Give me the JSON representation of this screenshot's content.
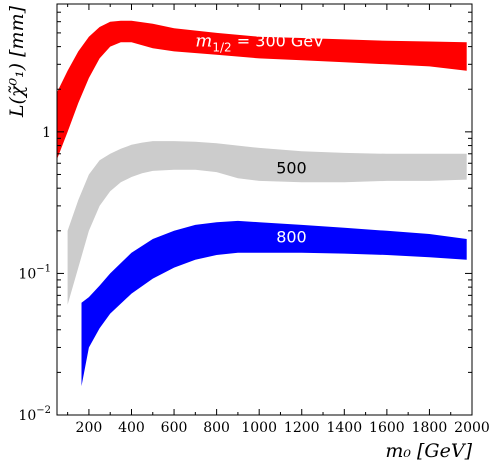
{
  "chart_data": {
    "type": "area",
    "xlabel": "m₀ [GeV]",
    "ylabel": "L(χ̃⁰₁) [mm]",
    "xlim": [
      50,
      2000
    ],
    "ylim": [
      0.01,
      8
    ],
    "y_scale": "log",
    "grid": false,
    "x_ticks": [
      200,
      400,
      600,
      800,
      1000,
      1200,
      1400,
      1600,
      1800,
      2000
    ],
    "y_ticks": [
      {
        "value": 0.01,
        "base": "10",
        "exp": "−2"
      },
      {
        "value": 0.1,
        "base": "10",
        "exp": "−1"
      },
      {
        "value": 1,
        "base": "1",
        "exp": ""
      }
    ],
    "series": [
      {
        "name": "m1/2 = 300 GeV",
        "label_main": "m",
        "label_sub": "1/2",
        "label_rest": " = 300 GeV",
        "label_at": [
          700,
          4.0
        ],
        "label_color": "#ffffff",
        "color": "#ff0000",
        "x": [
          50,
          100,
          150,
          200,
          250,
          300,
          350,
          400,
          500,
          600,
          800,
          1000,
          1200,
          1400,
          1600,
          1800,
          1975
        ],
        "upper": [
          1.9,
          2.7,
          3.7,
          4.7,
          5.5,
          6.0,
          6.1,
          6.1,
          5.8,
          5.4,
          5.0,
          4.7,
          4.6,
          4.5,
          4.4,
          4.35,
          4.3
        ],
        "lower": [
          0.64,
          1.0,
          1.6,
          2.4,
          3.3,
          4.0,
          4.3,
          4.3,
          3.9,
          3.7,
          3.5,
          3.3,
          3.2,
          3.1,
          3.0,
          2.9,
          2.7
        ]
      },
      {
        "name": "500",
        "label_main": "500",
        "label_sub": "",
        "label_rest": "",
        "label_at": [
          1080,
          0.51
        ],
        "label_color": "#000000",
        "color": "#cccccc",
        "x": [
          100,
          150,
          200,
          250,
          300,
          350,
          400,
          450,
          500,
          600,
          700,
          800,
          900,
          1000,
          1200,
          1400,
          1600,
          1800,
          1975
        ],
        "upper": [
          0.2,
          0.33,
          0.5,
          0.63,
          0.7,
          0.76,
          0.81,
          0.84,
          0.86,
          0.86,
          0.85,
          0.83,
          0.8,
          0.77,
          0.73,
          0.71,
          0.7,
          0.7,
          0.7
        ],
        "lower": [
          0.06,
          0.11,
          0.2,
          0.3,
          0.38,
          0.44,
          0.48,
          0.51,
          0.53,
          0.54,
          0.54,
          0.52,
          0.47,
          0.45,
          0.44,
          0.44,
          0.45,
          0.45,
          0.46
        ]
      },
      {
        "name": "800",
        "label_main": "800",
        "label_sub": "",
        "label_rest": "",
        "label_at": [
          1080,
          0.165
        ],
        "label_color": "#ffffff",
        "color": "#0000ff",
        "x": [
          165,
          200,
          250,
          300,
          400,
          500,
          600,
          700,
          800,
          900,
          1000,
          1200,
          1400,
          1600,
          1800,
          1975
        ],
        "upper": [
          0.062,
          0.068,
          0.082,
          0.1,
          0.14,
          0.175,
          0.2,
          0.22,
          0.23,
          0.235,
          0.23,
          0.22,
          0.21,
          0.2,
          0.19,
          0.175
        ],
        "lower": [
          0.016,
          0.03,
          0.041,
          0.052,
          0.072,
          0.092,
          0.11,
          0.125,
          0.135,
          0.14,
          0.14,
          0.14,
          0.138,
          0.135,
          0.13,
          0.125
        ]
      }
    ]
  }
}
